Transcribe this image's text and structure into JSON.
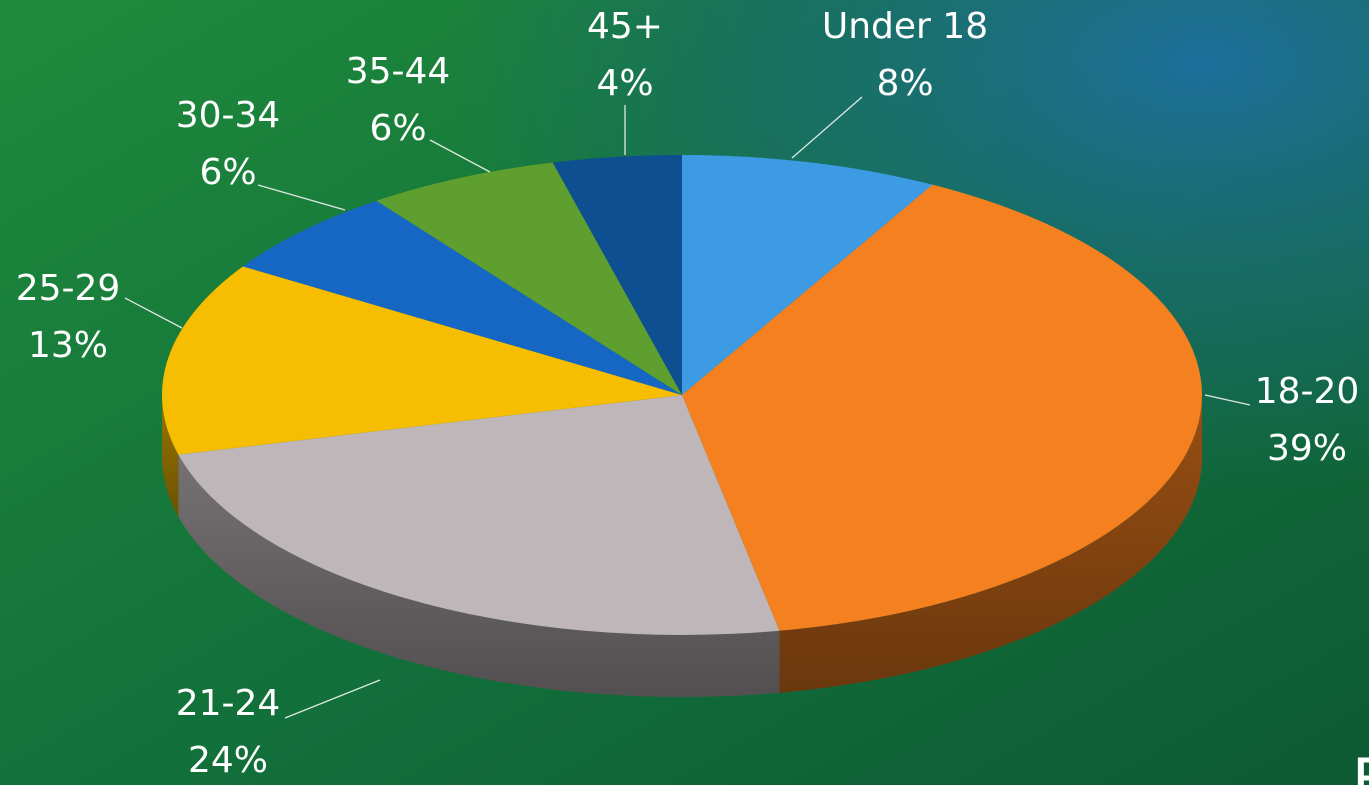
{
  "chart_data": {
    "type": "pie3d",
    "categories": [
      "Under 18",
      "18-20",
      "21-24",
      "25-29",
      "30-34",
      "35-44",
      "45+"
    ],
    "values": [
      8,
      39,
      24,
      13,
      6,
      6,
      4
    ],
    "value_labels": [
      "8%",
      "39%",
      "24%",
      "13%",
      "6%",
      "6%",
      "4%"
    ],
    "colors": [
      "#3d9be3",
      "#f5801f",
      "#bfb6ba",
      "#f7bd00",
      "#1666c4",
      "#5e9f2f",
      "#0e4f92"
    ],
    "annotation": "Fa"
  }
}
